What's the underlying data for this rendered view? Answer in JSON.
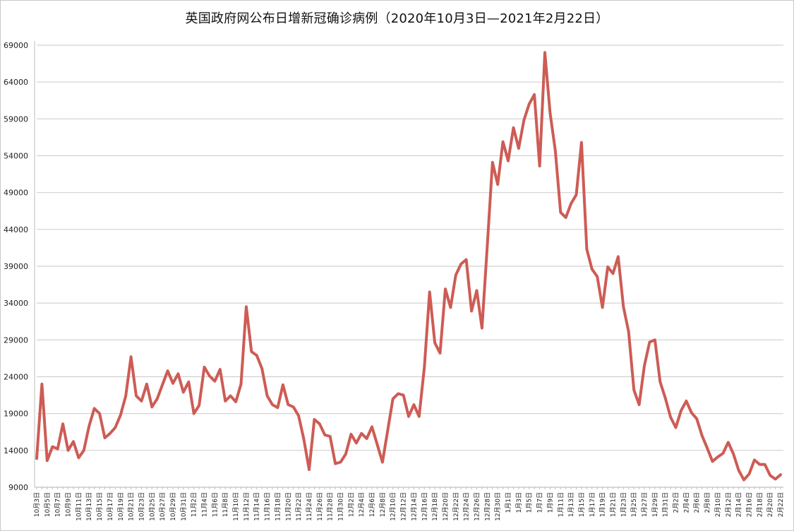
{
  "chart_data": {
    "type": "line",
    "title": "英国政府网公布日增新冠确诊病例（2020年10月3日—2021年2月22日）",
    "xlabel": "",
    "ylabel": "",
    "ylim": [
      9000,
      69000
    ],
    "yticks": [
      9000,
      14000,
      19000,
      24000,
      29000,
      34000,
      39000,
      44000,
      49000,
      54000,
      59000,
      64000,
      69000
    ],
    "grid": true,
    "legend": null,
    "line_color": "#cd5c55",
    "x_label_step": 2,
    "series": [
      {
        "name": "日增新冠确诊病例",
        "x": [
          "10月3日",
          "10月4日",
          "10月5日",
          "10月6日",
          "10月7日",
          "10月8日",
          "10月9日",
          "10月10日",
          "10月11日",
          "10月12日",
          "10月13日",
          "10月14日",
          "10月15日",
          "10月16日",
          "10月17日",
          "10月18日",
          "10月19日",
          "10月20日",
          "10月21日",
          "10月22日",
          "10月23日",
          "10月24日",
          "10月25日",
          "10月26日",
          "10月27日",
          "10月28日",
          "10月29日",
          "10月30日",
          "10月31日",
          "11月1日",
          "11月2日",
          "11月3日",
          "11月4日",
          "11月5日",
          "11月6日",
          "11月7日",
          "11月8日",
          "11月9日",
          "11月10日",
          "11月11日",
          "11月12日",
          "11月13日",
          "11月14日",
          "11月15日",
          "11月16日",
          "11月17日",
          "11月18日",
          "11月19日",
          "11月20日",
          "11月21日",
          "11月22日",
          "11月23日",
          "11月24日",
          "11月25日",
          "11月26日",
          "11月27日",
          "11月28日",
          "11月29日",
          "11月30日",
          "12月1日",
          "12月2日",
          "12月3日",
          "12月4日",
          "12月5日",
          "12月6日",
          "12月7日",
          "12月8日",
          "12月9日",
          "12月10日",
          "12月11日",
          "12月12日",
          "12月13日",
          "12月14日",
          "12月15日",
          "12月16日",
          "12月17日",
          "12月18日",
          "12月19日",
          "12月20日",
          "12月21日",
          "12月22日",
          "12月23日",
          "12月24日",
          "12月25日",
          "12月26日",
          "12月27日",
          "12月28日",
          "12月29日",
          "12月30日",
          "12月31日",
          "1月1日",
          "1月2日",
          "1月3日",
          "1月4日",
          "1月5日",
          "1月6日",
          "1月7日",
          "1月8日",
          "1月9日",
          "1月10日",
          "1月11日",
          "1月12日",
          "1月13日",
          "1月14日",
          "1月15日",
          "1月16日",
          "1月17日",
          "1月18日",
          "1月19日",
          "1月20日",
          "1月21日",
          "1月22日",
          "1月23日",
          "1月24日",
          "1月25日",
          "1月26日",
          "1月27日",
          "1月28日",
          "1月29日",
          "1月30日",
          "1月31日",
          "2月1日",
          "2月2日",
          "2月3日",
          "2月4日",
          "2月5日",
          "2月6日",
          "2月7日",
          "2月8日",
          "2月9日",
          "2月10日",
          "2月11日",
          "2月12日",
          "2月13日",
          "2月14日",
          "2月15日",
          "2月16日",
          "2月17日",
          "2月18日",
          "2月19日",
          "2月20日",
          "2月21日",
          "2月22日"
        ],
        "values": [
          12900,
          23000,
          12600,
          14500,
          14200,
          17600,
          14000,
          15200,
          13000,
          14000,
          17300,
          19700,
          19000,
          15700,
          16300,
          17100,
          18800,
          21400,
          26700,
          21400,
          20700,
          23000,
          19900,
          21000,
          22900,
          24800,
          23100,
          24400,
          21900,
          23300,
          19000,
          20100,
          25300,
          24100,
          23400,
          25000,
          20700,
          21400,
          20600,
          23000,
          33500,
          27400,
          26900,
          25100,
          21400,
          20200,
          19800,
          22900,
          20200,
          19900,
          18700,
          15500,
          11400,
          18200,
          17600,
          16100,
          15900,
          12200,
          12400,
          13500,
          16200,
          15000,
          16300,
          15600,
          17200,
          14800,
          12400,
          16700,
          21000,
          21700,
          21500,
          18600,
          20200,
          18600,
          25300,
          35500,
          28600,
          27200,
          35900,
          33400,
          37800,
          39300,
          39900,
          32900,
          35700,
          30600,
          41600,
          53100,
          50100,
          55900,
          53300,
          57800,
          55000,
          58800,
          61000,
          62300,
          52600,
          68000,
          59800,
          54700,
          46300,
          45600,
          47500,
          48700,
          55800,
          41300,
          38600,
          37600,
          33400,
          38900,
          38000,
          40300,
          33500,
          30100,
          22200,
          20200,
          25500,
          28700,
          29000,
          23300,
          21100,
          18500,
          17100,
          19400,
          20700,
          19100,
          18300,
          16000,
          14300,
          12500,
          13100,
          13600,
          15100,
          13500,
          11300,
          10000,
          10800,
          12700,
          12100,
          12100,
          10600,
          10100,
          10700
        ]
      }
    ]
  }
}
